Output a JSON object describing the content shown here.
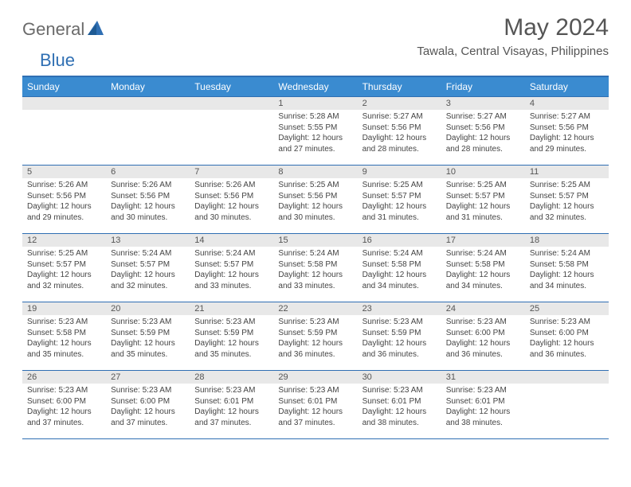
{
  "logo": {
    "general": "General",
    "blue": "Blue"
  },
  "title": "May 2024",
  "location": "Tawala, Central Visayas, Philippines",
  "colors": {
    "header_bg": "#3a8bd0",
    "rule": "#2f6fb3",
    "daynum_bg": "#e8e8e8",
    "text": "#444444",
    "title_text": "#555555"
  },
  "weekdays": [
    "Sunday",
    "Monday",
    "Tuesday",
    "Wednesday",
    "Thursday",
    "Friday",
    "Saturday"
  ],
  "weeks": [
    [
      null,
      null,
      null,
      {
        "n": "1",
        "sr": "Sunrise: 5:28 AM",
        "ss": "Sunset: 5:55 PM",
        "dl": "Daylight: 12 hours and 27 minutes."
      },
      {
        "n": "2",
        "sr": "Sunrise: 5:27 AM",
        "ss": "Sunset: 5:56 PM",
        "dl": "Daylight: 12 hours and 28 minutes."
      },
      {
        "n": "3",
        "sr": "Sunrise: 5:27 AM",
        "ss": "Sunset: 5:56 PM",
        "dl": "Daylight: 12 hours and 28 minutes."
      },
      {
        "n": "4",
        "sr": "Sunrise: 5:27 AM",
        "ss": "Sunset: 5:56 PM",
        "dl": "Daylight: 12 hours and 29 minutes."
      }
    ],
    [
      {
        "n": "5",
        "sr": "Sunrise: 5:26 AM",
        "ss": "Sunset: 5:56 PM",
        "dl": "Daylight: 12 hours and 29 minutes."
      },
      {
        "n": "6",
        "sr": "Sunrise: 5:26 AM",
        "ss": "Sunset: 5:56 PM",
        "dl": "Daylight: 12 hours and 30 minutes."
      },
      {
        "n": "7",
        "sr": "Sunrise: 5:26 AM",
        "ss": "Sunset: 5:56 PM",
        "dl": "Daylight: 12 hours and 30 minutes."
      },
      {
        "n": "8",
        "sr": "Sunrise: 5:25 AM",
        "ss": "Sunset: 5:56 PM",
        "dl": "Daylight: 12 hours and 30 minutes."
      },
      {
        "n": "9",
        "sr": "Sunrise: 5:25 AM",
        "ss": "Sunset: 5:57 PM",
        "dl": "Daylight: 12 hours and 31 minutes."
      },
      {
        "n": "10",
        "sr": "Sunrise: 5:25 AM",
        "ss": "Sunset: 5:57 PM",
        "dl": "Daylight: 12 hours and 31 minutes."
      },
      {
        "n": "11",
        "sr": "Sunrise: 5:25 AM",
        "ss": "Sunset: 5:57 PM",
        "dl": "Daylight: 12 hours and 32 minutes."
      }
    ],
    [
      {
        "n": "12",
        "sr": "Sunrise: 5:25 AM",
        "ss": "Sunset: 5:57 PM",
        "dl": "Daylight: 12 hours and 32 minutes."
      },
      {
        "n": "13",
        "sr": "Sunrise: 5:24 AM",
        "ss": "Sunset: 5:57 PM",
        "dl": "Daylight: 12 hours and 32 minutes."
      },
      {
        "n": "14",
        "sr": "Sunrise: 5:24 AM",
        "ss": "Sunset: 5:57 PM",
        "dl": "Daylight: 12 hours and 33 minutes."
      },
      {
        "n": "15",
        "sr": "Sunrise: 5:24 AM",
        "ss": "Sunset: 5:58 PM",
        "dl": "Daylight: 12 hours and 33 minutes."
      },
      {
        "n": "16",
        "sr": "Sunrise: 5:24 AM",
        "ss": "Sunset: 5:58 PM",
        "dl": "Daylight: 12 hours and 34 minutes."
      },
      {
        "n": "17",
        "sr": "Sunrise: 5:24 AM",
        "ss": "Sunset: 5:58 PM",
        "dl": "Daylight: 12 hours and 34 minutes."
      },
      {
        "n": "18",
        "sr": "Sunrise: 5:24 AM",
        "ss": "Sunset: 5:58 PM",
        "dl": "Daylight: 12 hours and 34 minutes."
      }
    ],
    [
      {
        "n": "19",
        "sr": "Sunrise: 5:23 AM",
        "ss": "Sunset: 5:58 PM",
        "dl": "Daylight: 12 hours and 35 minutes."
      },
      {
        "n": "20",
        "sr": "Sunrise: 5:23 AM",
        "ss": "Sunset: 5:59 PM",
        "dl": "Daylight: 12 hours and 35 minutes."
      },
      {
        "n": "21",
        "sr": "Sunrise: 5:23 AM",
        "ss": "Sunset: 5:59 PM",
        "dl": "Daylight: 12 hours and 35 minutes."
      },
      {
        "n": "22",
        "sr": "Sunrise: 5:23 AM",
        "ss": "Sunset: 5:59 PM",
        "dl": "Daylight: 12 hours and 36 minutes."
      },
      {
        "n": "23",
        "sr": "Sunrise: 5:23 AM",
        "ss": "Sunset: 5:59 PM",
        "dl": "Daylight: 12 hours and 36 minutes."
      },
      {
        "n": "24",
        "sr": "Sunrise: 5:23 AM",
        "ss": "Sunset: 6:00 PM",
        "dl": "Daylight: 12 hours and 36 minutes."
      },
      {
        "n": "25",
        "sr": "Sunrise: 5:23 AM",
        "ss": "Sunset: 6:00 PM",
        "dl": "Daylight: 12 hours and 36 minutes."
      }
    ],
    [
      {
        "n": "26",
        "sr": "Sunrise: 5:23 AM",
        "ss": "Sunset: 6:00 PM",
        "dl": "Daylight: 12 hours and 37 minutes."
      },
      {
        "n": "27",
        "sr": "Sunrise: 5:23 AM",
        "ss": "Sunset: 6:00 PM",
        "dl": "Daylight: 12 hours and 37 minutes."
      },
      {
        "n": "28",
        "sr": "Sunrise: 5:23 AM",
        "ss": "Sunset: 6:01 PM",
        "dl": "Daylight: 12 hours and 37 minutes."
      },
      {
        "n": "29",
        "sr": "Sunrise: 5:23 AM",
        "ss": "Sunset: 6:01 PM",
        "dl": "Daylight: 12 hours and 37 minutes."
      },
      {
        "n": "30",
        "sr": "Sunrise: 5:23 AM",
        "ss": "Sunset: 6:01 PM",
        "dl": "Daylight: 12 hours and 38 minutes."
      },
      {
        "n": "31",
        "sr": "Sunrise: 5:23 AM",
        "ss": "Sunset: 6:01 PM",
        "dl": "Daylight: 12 hours and 38 minutes."
      },
      null
    ]
  ]
}
